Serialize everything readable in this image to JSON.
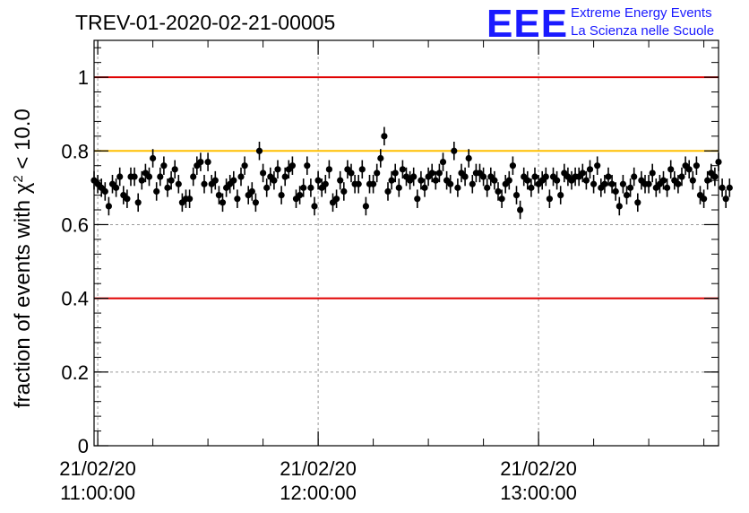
{
  "header": {
    "title": "TREV-01-2020-02-21-00005",
    "logo_text": "EEE",
    "logo_line1": "Extreme Energy Events",
    "logo_line2": "La Scienza nelle Scuole"
  },
  "colors": {
    "reference_red": "#e00000",
    "reference_orange": "#ffbf00",
    "points": "#000000",
    "grid": "#9a9a9a",
    "logo_blue": "#1a1aff"
  },
  "chart_data": {
    "type": "scatter",
    "title": "TREV-01-2020-02-21-00005",
    "ylabel_prefix": "fraction of events with χ",
    "ylabel_sup": "2",
    "ylabel_suffix": " < 10.0",
    "xlabel": "",
    "ylim": [
      0,
      1.1
    ],
    "xlim": [
      "21/02/20 10:59:00",
      "21/02/20 13:49:00"
    ],
    "grid": true,
    "y_ticks": [
      {
        "value": 0,
        "label": "0"
      },
      {
        "value": 0.2,
        "label": "0.2"
      },
      {
        "value": 0.4,
        "label": "0.4"
      },
      {
        "value": 0.6,
        "label": "0.6"
      },
      {
        "value": 0.8,
        "label": "0.8"
      },
      {
        "value": 1.0,
        "label": "1"
      }
    ],
    "x_ticks": [
      {
        "time": "21/02/20 11:00:00",
        "date": "21/02/20",
        "clock": "11:00:00"
      },
      {
        "time": "21/02/20 12:00:00",
        "date": "21/02/20",
        "clock": "12:00:00"
      },
      {
        "time": "21/02/20 13:00:00",
        "date": "21/02/20",
        "clock": "13:00:00"
      }
    ],
    "reference_lines": [
      {
        "y": 1.0,
        "color": "#e00000"
      },
      {
        "y": 0.8,
        "color": "#ffbf00"
      },
      {
        "y": 0.4,
        "color": "#e00000"
      }
    ],
    "x_start": "21/02/20 10:59:00",
    "x_step_seconds": 60,
    "values": [
      0.72,
      0.71,
      0.7,
      0.69,
      0.65,
      0.71,
      0.7,
      0.73,
      0.68,
      0.67,
      0.73,
      0.73,
      0.66,
      0.72,
      0.74,
      0.73,
      0.78,
      0.69,
      0.73,
      0.76,
      0.7,
      0.72,
      0.75,
      0.71,
      0.66,
      0.67,
      0.67,
      0.73,
      0.76,
      0.77,
      0.71,
      0.77,
      0.71,
      0.72,
      0.68,
      0.66,
      0.7,
      0.71,
      0.72,
      0.67,
      0.73,
      0.76,
      0.68,
      0.69,
      0.66,
      0.8,
      0.74,
      0.7,
      0.73,
      0.72,
      0.75,
      0.68,
      0.73,
      0.75,
      0.76,
      0.67,
      0.68,
      0.7,
      0.76,
      0.7,
      0.65,
      0.72,
      0.7,
      0.71,
      0.75,
      0.66,
      0.67,
      0.72,
      0.69,
      0.75,
      0.74,
      0.71,
      0.71,
      0.75,
      0.65,
      0.71,
      0.71,
      0.74,
      0.78,
      0.84,
      0.69,
      0.72,
      0.74,
      0.7,
      0.75,
      0.73,
      0.72,
      0.73,
      0.67,
      0.72,
      0.7,
      0.73,
      0.74,
      0.72,
      0.74,
      0.77,
      0.72,
      0.71,
      0.8,
      0.7,
      0.74,
      0.73,
      0.78,
      0.71,
      0.74,
      0.74,
      0.73,
      0.7,
      0.73,
      0.72,
      0.69,
      0.67,
      0.71,
      0.72,
      0.76,
      0.68,
      0.64,
      0.73,
      0.72,
      0.7,
      0.73,
      0.71,
      0.72,
      0.73,
      0.67,
      0.73,
      0.72,
      0.68,
      0.74,
      0.73,
      0.72,
      0.73,
      0.73,
      0.74,
      0.72,
      0.75,
      0.71,
      0.76,
      0.7,
      0.71,
      0.73,
      0.71,
      0.69,
      0.65,
      0.71,
      0.68,
      0.7,
      0.73,
      0.66,
      0.72,
      0.71,
      0.71,
      0.74,
      0.7,
      0.71,
      0.72,
      0.7,
      0.75,
      0.72,
      0.71,
      0.73,
      0.76,
      0.75,
      0.72,
      0.76,
      0.68,
      0.67,
      0.72,
      0.74,
      0.73,
      0.77,
      0.7,
      0.67,
      0.7
    ],
    "error_half_width": 0.025
  }
}
